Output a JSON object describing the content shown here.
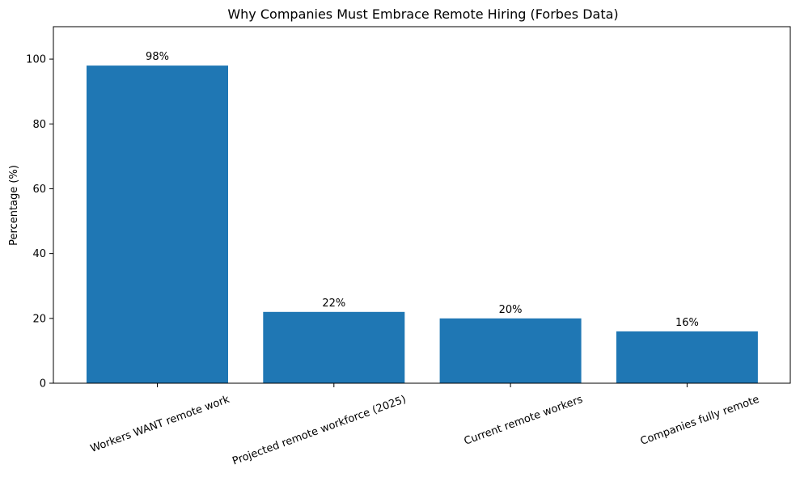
{
  "chart_data": {
    "type": "bar",
    "title": "Why Companies Must Embrace Remote Hiring (Forbes Data)",
    "xlabel": "",
    "ylabel": "Percentage (%)",
    "categories": [
      "Workers WANT remote work",
      "Projected remote workforce (2025)",
      "Current remote workers",
      "Companies fully remote"
    ],
    "values": [
      98,
      22,
      20,
      16
    ],
    "data_labels": [
      "98%",
      "22%",
      "20%",
      "16%"
    ],
    "ylim": [
      0,
      110
    ],
    "yticks": [
      0,
      20,
      40,
      60,
      80,
      100
    ],
    "grid": false,
    "legend": "none",
    "bar_color": "#1f77b4"
  }
}
